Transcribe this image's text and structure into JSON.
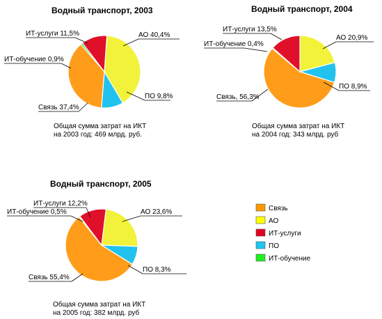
{
  "chart_data": [
    {
      "type": "pie",
      "title": "Водный транспорт, 2003",
      "categories": [
        "АО",
        "ПО",
        "Связь",
        "ИТ-обучение",
        "ИТ-услуги"
      ],
      "values": [
        40.4,
        9.8,
        37.4,
        0.9,
        11.5
      ],
      "labels": [
        "АО 40,4%",
        "ПО 9,8%",
        "Связь 37,4%",
        "ИТ-обучение 0,9%",
        "ИТ-услуги 11,5%"
      ],
      "note": [
        "Общая сумма затрат на ИКТ",
        "на 2003 год: 469 млрд. руб."
      ]
    },
    {
      "type": "pie",
      "title": "Водный транспорт, 2004",
      "categories": [
        "АО",
        "ПО",
        "Связь",
        "ИТ-обучение",
        "ИТ-услуги"
      ],
      "values": [
        20.9,
        8.9,
        56.3,
        0.4,
        13.5
      ],
      "labels": [
        "АО 20,9%",
        "ПО 8,9%",
        "Связь, 56,3%",
        "ИТ-обучение 0,4%",
        "ИТ-услуги 13,5%"
      ],
      "note": [
        "Общая сумма затрат на ИКТ",
        "на 2004 год: 343 млрд. руб"
      ]
    },
    {
      "type": "pie",
      "title": "Водный транспорт, 2005",
      "categories": [
        "АО",
        "ПО",
        "Связь",
        "ИТ-обучение",
        "ИТ-услуги"
      ],
      "values": [
        23.6,
        8.3,
        55.4,
        0.5,
        12.2
      ],
      "labels": [
        "АО 23,6%",
        "ПО 8,3%",
        "Связь 55,4%",
        "ИТ-обучение 0,5%",
        "ИТ-услуги 12,2%"
      ],
      "note": [
        "Общая сумма затрат на ИКТ",
        "на 2005 год: 382 млрд. руб"
      ]
    }
  ],
  "legend": {
    "items": [
      {
        "label": "Связь",
        "color": "#ff9900"
      },
      {
        "label": "АО",
        "color": "#ffff00"
      },
      {
        "label": "ИТ-услуги",
        "color": "#e00020"
      },
      {
        "label": "ПО",
        "color": "#1ec6f0"
      },
      {
        "label": "ИТ-обучение",
        "color": "#22ee22"
      }
    ]
  },
  "colors": {
    "АО": "#f2f23a",
    "ПО": "#22c2ee",
    "Связь": "#ff9d1a",
    "ИТ-обучение": "#26e64a",
    "ИТ-услуги": "#e0102a"
  }
}
